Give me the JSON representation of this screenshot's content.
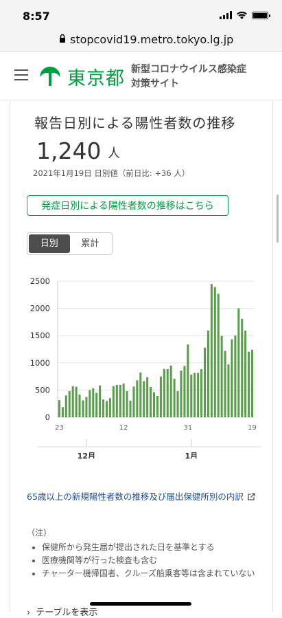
{
  "status_bar": {
    "time": "8:57"
  },
  "browser": {
    "url": "stopcovid19.metro.tokyo.lg.jp"
  },
  "header": {
    "logo_text": "東京都",
    "site_title": "新型コロナウイルス感染症対策サイト"
  },
  "card": {
    "title": "報告日別による陽性者数の推移",
    "value": "1,240",
    "unit": "人",
    "date_line": "2021年1月19日 日別値（前日比: +36 人）",
    "onset_link": "発症日別による陽性者数の推移はこちら",
    "toggle": {
      "daily": "日別",
      "cumulative": "累計"
    },
    "link_text": "65歳以上の新規陽性者数の推移及び届出保健所別の内訳",
    "notes": {
      "head": "（注）",
      "items": [
        "保健所から発生届が提出された日を基準とする",
        "医療機関等が行った検査も含む",
        "チャーター機帰国者、クルーズ船乗客等は含まれていない"
      ]
    },
    "table_toggle": "テーブルを表示"
  },
  "colors": {
    "accent": "#00a040",
    "bar": "#5a9e4b"
  },
  "chart_data": {
    "type": "bar",
    "title": "",
    "xlabel": "",
    "ylabel": "",
    "ylim": [
      0,
      2500
    ],
    "y_ticks": [
      0,
      500,
      1000,
      1500,
      2000,
      2500
    ],
    "x_tick_labels": [
      "23",
      "12",
      "31",
      "19"
    ],
    "x_month_labels": [
      "12月",
      "1月"
    ],
    "categories": [
      "11/23",
      "11/24",
      "11/25",
      "11/26",
      "11/27",
      "11/28",
      "11/29",
      "11/30",
      "12/1",
      "12/2",
      "12/3",
      "12/4",
      "12/5",
      "12/6",
      "12/7",
      "12/8",
      "12/9",
      "12/10",
      "12/11",
      "12/12",
      "12/13",
      "12/14",
      "12/15",
      "12/16",
      "12/17",
      "12/18",
      "12/19",
      "12/20",
      "12/21",
      "12/22",
      "12/23",
      "12/24",
      "12/25",
      "12/26",
      "12/27",
      "12/28",
      "12/29",
      "12/30",
      "12/31",
      "1/1",
      "1/2",
      "1/3",
      "1/4",
      "1/5",
      "1/6",
      "1/7",
      "1/8",
      "1/9",
      "1/10",
      "1/11",
      "1/12",
      "1/13",
      "1/14",
      "1/15",
      "1/16",
      "1/17",
      "1/18",
      "1/19"
    ],
    "values": [
      314,
      186,
      401,
      481,
      570,
      561,
      418,
      311,
      372,
      500,
      533,
      449,
      584,
      327,
      299,
      352,
      572,
      595,
      595,
      621,
      480,
      305,
      563,
      678,
      822,
      664,
      736,
      556,
      460,
      392,
      748,
      888,
      884,
      949,
      708,
      481,
      856,
      944,
      1337,
      783,
      814,
      816,
      884,
      1278,
      1591,
      2447,
      2392,
      2268,
      1494,
      1219,
      970,
      1433,
      1502,
      2001,
      1809,
      1592,
      1204,
      1240
    ],
    "grid": true,
    "legend": "none"
  }
}
